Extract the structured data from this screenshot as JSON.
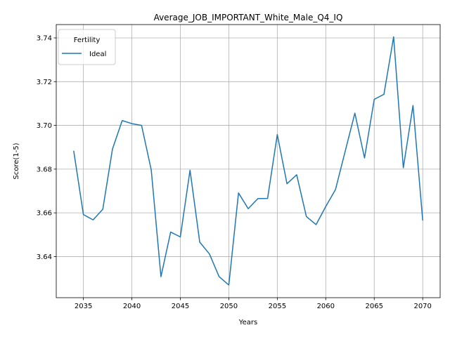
{
  "chart_data": {
    "type": "line",
    "title": "Average_JOB_IMPORTANT_White_Male_Q4_IQ",
    "xlabel": "Years",
    "ylabel": "Score(1-5)",
    "xlim": [
      2032.2,
      2071.8
    ],
    "ylim": [
      3.6212,
      3.7461
    ],
    "xticks": [
      2035,
      2040,
      2045,
      2050,
      2055,
      2060,
      2065,
      2070
    ],
    "yticks": [
      3.64,
      3.66,
      3.68,
      3.7,
      3.72,
      3.74
    ],
    "ytick_labels": [
      "3.64",
      "3.66",
      "3.68",
      "3.70",
      "3.72",
      "3.74"
    ],
    "grid": true,
    "legend": {
      "title": "Fertility",
      "placement": "top-left"
    },
    "series": [
      {
        "name": "Ideal",
        "color": "#1f77b4",
        "x": [
          2034,
          2035,
          2036,
          2037,
          2038,
          2039,
          2040,
          2041,
          2042,
          2043,
          2044,
          2045,
          2046,
          2047,
          2048,
          2049,
          2050,
          2051,
          2052,
          2053,
          2054,
          2055,
          2056,
          2057,
          2058,
          2059,
          2060,
          2061,
          2062,
          2063,
          2064,
          2065,
          2066,
          2067,
          2068,
          2069,
          2070
        ],
        "y": [
          3.6884,
          3.6592,
          3.6568,
          3.6616,
          3.6892,
          3.7022,
          3.7008,
          3.7,
          3.6796,
          3.6308,
          3.6512,
          3.649,
          3.6795,
          3.6466,
          3.6412,
          3.6308,
          3.627,
          3.6691,
          3.6619,
          3.6665,
          3.6666,
          3.6958,
          3.6733,
          3.6774,
          3.6583,
          3.6546,
          3.6629,
          3.6706,
          3.6881,
          3.7056,
          3.6851,
          3.7119,
          3.7142,
          3.7405,
          3.6806,
          3.7091,
          3.6565
        ]
      }
    ]
  }
}
